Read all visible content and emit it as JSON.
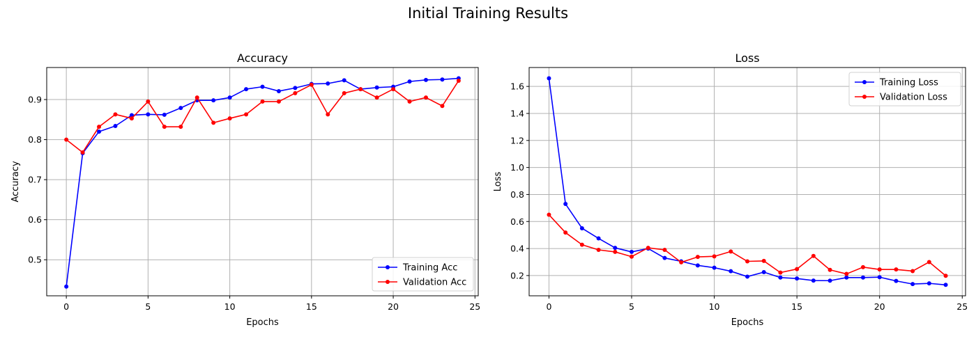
{
  "figure": {
    "title": "Initial Training Results"
  },
  "chart_data": [
    {
      "type": "line",
      "title": "Accuracy",
      "xlabel": "Epochs",
      "ylabel": "Accuracy",
      "xlim": [
        -1.2,
        25.2
      ],
      "ylim": [
        0.41,
        0.98
      ],
      "xticks": [
        0,
        5,
        10,
        15,
        20,
        25
      ],
      "yticks": [
        0.5,
        0.6,
        0.7,
        0.8,
        0.9
      ],
      "grid": true,
      "legend_position": "lower-right",
      "x": [
        0,
        1,
        2,
        3,
        4,
        5,
        6,
        7,
        8,
        9,
        10,
        11,
        12,
        13,
        14,
        15,
        16,
        17,
        18,
        19,
        20,
        21,
        22,
        23,
        24
      ],
      "series": [
        {
          "name": "Training Acc",
          "color": "#0000ff",
          "values": [
            0.433,
            0.766,
            0.82,
            0.834,
            0.861,
            0.863,
            0.862,
            0.879,
            0.898,
            0.898,
            0.905,
            0.926,
            0.932,
            0.921,
            0.929,
            0.939,
            0.94,
            0.948,
            0.926,
            0.93,
            0.932,
            0.945,
            0.949,
            0.95,
            0.953
          ]
        },
        {
          "name": "Validation Acc",
          "color": "#ff0000",
          "values": [
            0.8,
            0.768,
            0.832,
            0.863,
            0.853,
            0.895,
            0.832,
            0.832,
            0.905,
            0.842,
            0.853,
            0.863,
            0.895,
            0.895,
            0.916,
            0.937,
            0.863,
            0.916,
            0.926,
            0.905,
            0.926,
            0.895,
            0.905,
            0.884,
            0.947
          ]
        }
      ]
    },
    {
      "type": "line",
      "title": "Loss",
      "xlabel": "Epochs",
      "ylabel": "Loss",
      "xlim": [
        -1.2,
        25.2
      ],
      "ylim": [
        0.05,
        1.74
      ],
      "xticks": [
        0,
        5,
        10,
        15,
        20,
        25
      ],
      "yticks": [
        0.2,
        0.4,
        0.6,
        0.8,
        1.0,
        1.2,
        1.4,
        1.6
      ],
      "grid": true,
      "legend_position": "upper-right",
      "x": [
        0,
        1,
        2,
        3,
        4,
        5,
        6,
        7,
        8,
        9,
        10,
        11,
        12,
        13,
        14,
        15,
        16,
        17,
        18,
        19,
        20,
        21,
        22,
        23,
        24
      ],
      "series": [
        {
          "name": "Training Loss",
          "color": "#0000ff",
          "values": [
            1.66,
            0.73,
            0.55,
            0.475,
            0.405,
            0.375,
            0.4,
            0.33,
            0.305,
            0.275,
            0.258,
            0.232,
            0.192,
            0.225,
            0.185,
            0.178,
            0.163,
            0.162,
            0.185,
            0.185,
            0.188,
            0.16,
            0.137,
            0.142,
            0.131
          ]
        },
        {
          "name": "Validation Loss",
          "color": "#ff0000",
          "values": [
            0.65,
            0.518,
            0.428,
            0.39,
            0.375,
            0.34,
            0.405,
            0.39,
            0.298,
            0.338,
            0.342,
            0.378,
            0.305,
            0.308,
            0.222,
            0.248,
            0.345,
            0.242,
            0.212,
            0.262,
            0.245,
            0.245,
            0.233,
            0.3,
            0.198
          ]
        }
      ]
    }
  ]
}
